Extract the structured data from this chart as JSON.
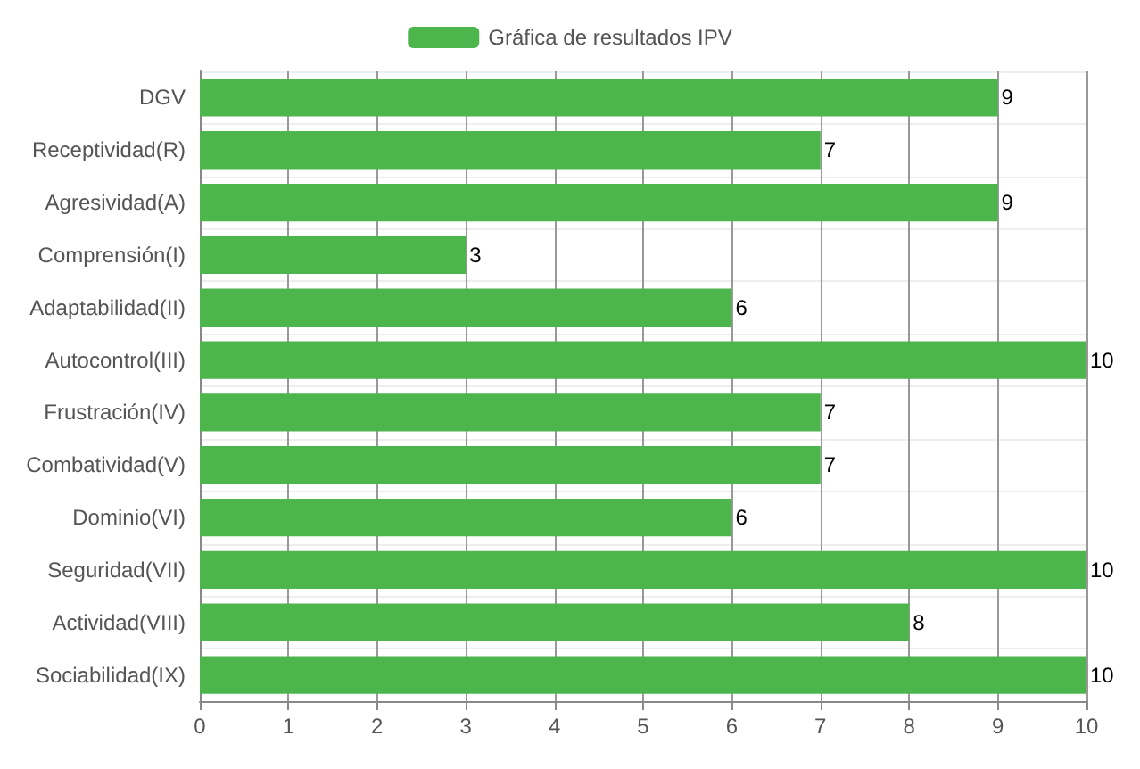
{
  "chart_data": {
    "type": "bar",
    "orientation": "horizontal",
    "categories": [
      "DGV",
      "Receptividad(R)",
      "Agresividad(A)",
      "Comprensión(I)",
      "Adaptabilidad(II)",
      "Autocontrol(III)",
      "Frustración(IV)",
      "Combatividad(V)",
      "Dominio(VI)",
      "Seguridad(VII)",
      "Actividad(VIII)",
      "Sociabilidad(IX)"
    ],
    "series": [
      {
        "name": "Gráfica de resultados IPV",
        "color": "#4cb54c",
        "values": [
          9,
          7,
          9,
          3,
          6,
          10,
          7,
          7,
          6,
          10,
          8,
          10
        ]
      }
    ],
    "xlim": [
      0,
      10
    ],
    "xticks": [
      0,
      1,
      2,
      3,
      4,
      5,
      6,
      7,
      8,
      9,
      10
    ],
    "grid": true,
    "legend": "top",
    "data_labels": true
  }
}
